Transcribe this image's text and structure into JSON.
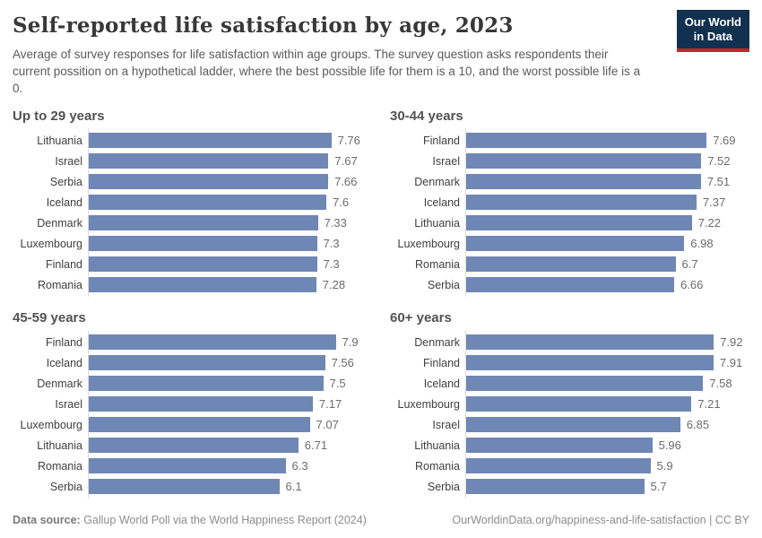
{
  "header": {
    "title": "Self-reported life satisfaction by age, 2023",
    "subtitle": "Average of survey responses for life satisfaction within age groups. The survey question asks respondents their current possition on a hypothetical ladder, where the best possible life for them is a 10, and the worst possible life is a 0.",
    "logo_line1": "Our World",
    "logo_line2": "in Data"
  },
  "colors": {
    "bar": "#6e87b4",
    "logo_navy": "#12304f",
    "logo_red": "#c4262e"
  },
  "chart_data": {
    "type": "bar",
    "orientation": "horizontal",
    "value_scale_min": 0,
    "value_scale_max": 8,
    "legend": "none",
    "panels": [
      {
        "title": "Up to 29 years",
        "bars": [
          {
            "country": "Lithuania",
            "value": "7.76"
          },
          {
            "country": "Israel",
            "value": "7.67"
          },
          {
            "country": "Serbia",
            "value": "7.66"
          },
          {
            "country": "Iceland",
            "value": "7.6"
          },
          {
            "country": "Denmark",
            "value": "7.33"
          },
          {
            "country": "Luxembourg",
            "value": "7.3"
          },
          {
            "country": "Finland",
            "value": "7.3"
          },
          {
            "country": "Romania",
            "value": "7.28"
          }
        ]
      },
      {
        "title": "30-44 years",
        "bars": [
          {
            "country": "Finland",
            "value": "7.69"
          },
          {
            "country": "Israel",
            "value": "7.52"
          },
          {
            "country": "Denmark",
            "value": "7.51"
          },
          {
            "country": "Iceland",
            "value": "7.37"
          },
          {
            "country": "Lithuania",
            "value": "7.22"
          },
          {
            "country": "Luxembourg",
            "value": "6.98"
          },
          {
            "country": "Romania",
            "value": "6.7"
          },
          {
            "country": "Serbia",
            "value": "6.66"
          }
        ]
      },
      {
        "title": "45-59 years",
        "bars": [
          {
            "country": "Finland",
            "value": "7.9"
          },
          {
            "country": "Iceland",
            "value": "7.56"
          },
          {
            "country": "Denmark",
            "value": "7.5"
          },
          {
            "country": "Israel",
            "value": "7.17"
          },
          {
            "country": "Luxembourg",
            "value": "7.07"
          },
          {
            "country": "Lithuania",
            "value": "6.71"
          },
          {
            "country": "Romania",
            "value": "6.3"
          },
          {
            "country": "Serbia",
            "value": "6.1"
          }
        ]
      },
      {
        "title": "60+ years",
        "bars": [
          {
            "country": "Denmark",
            "value": "7.92"
          },
          {
            "country": "Finland",
            "value": "7.91"
          },
          {
            "country": "Iceland",
            "value": "7.58"
          },
          {
            "country": "Luxembourg",
            "value": "7.21"
          },
          {
            "country": "Israel",
            "value": "6.85"
          },
          {
            "country": "Lithuania",
            "value": "5.96"
          },
          {
            "country": "Romania",
            "value": "5.9"
          },
          {
            "country": "Serbia",
            "value": "5.7"
          }
        ]
      }
    ]
  },
  "footer": {
    "datasource_label": "Data source:",
    "datasource_text": " Gallup World Poll via the World Happiness Report (2024)",
    "link": "OurWorldinData.org/happiness-and-life-satisfaction | CC BY"
  }
}
